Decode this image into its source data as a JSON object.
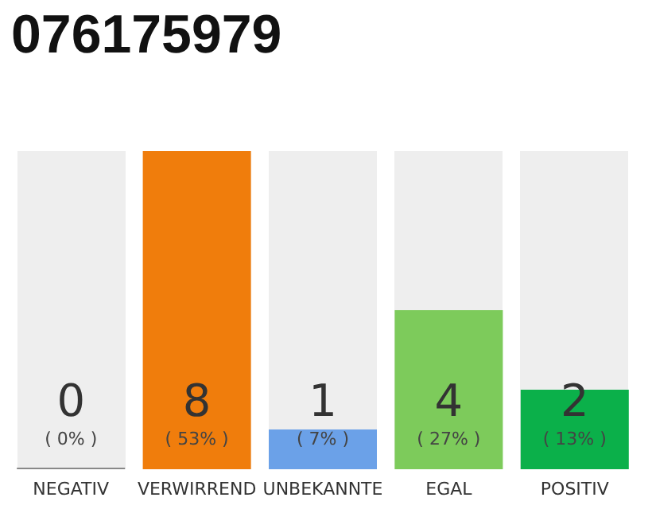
{
  "chart_data": {
    "type": "bar",
    "title": "076175979",
    "categories": [
      "NEGATIV",
      "VERWIRREND",
      "UNBEKANNTE",
      "EGAL",
      "POSITIV"
    ],
    "values": [
      0,
      8,
      1,
      4,
      2
    ],
    "colors": [
      "#888888",
      "#f07d0c",
      "#6ba1e8",
      "#7dcb5b",
      "#0bb04a"
    ],
    "value_labels": [
      "0\n( 0% )",
      "8\n( 53% )",
      "1\n( 7% )",
      "4\n( 27% )",
      "2\n( 13% )"
    ]
  }
}
